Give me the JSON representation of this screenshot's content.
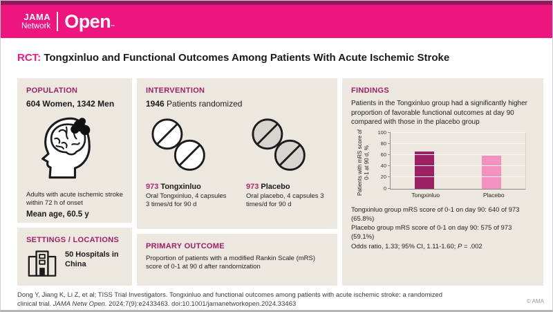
{
  "brand": {
    "jama": "JAMA",
    "network": "Network",
    "open": "Open",
    "tm": "™"
  },
  "title": {
    "tag": "RCT:",
    "text": " Tongxinluo and Functional Outcomes Among Patients With Acute Ischemic Stroke"
  },
  "population": {
    "heading": "POPULATION",
    "stat": "604 Women, 1342 Men",
    "description": "Adults with acute ischemic stroke within 72 h of onset",
    "mean_age": "Mean age, 60.5 y",
    "icon": "head-brain-stroke-icon"
  },
  "settings": {
    "heading": "SETTINGS / LOCATIONS",
    "stat": "50 Hospitals in China",
    "icon": "hospital-icon"
  },
  "intervention": {
    "heading": "INTERVENTION",
    "count": "1946",
    "count_suffix": " Patients randomized",
    "groups": [
      {
        "count": "973",
        "name": " Tongxinluo",
        "detail": "Oral Tongxinluo, 4 capsules 3 times/d for 90 d",
        "icon": "capsules-icon"
      },
      {
        "count": "973",
        "name": " Placebo",
        "detail": "Oral placebo, 4 capsules 3 times/d for 90 d",
        "icon": "capsules-placebo-icon"
      }
    ]
  },
  "primary_outcome": {
    "heading": "PRIMARY OUTCOME",
    "text": "Proportion of patients with a modified Rankin Scale (mRS) score of 0-1 at 90 d after randomization"
  },
  "findings": {
    "heading": "FINDINGS",
    "summary": "Patients in the Tongxinluo group had a significantly higher proportion of favorable functional outcomes at day 90 compared with those in the placebo group",
    "results": [
      "Tongxinluo group mRS score of 0-1 on day 90: 640 of 973 (65.8%)",
      "Placebo group mRS score of 0-1 on day 90: 575 of 973 (59.1%)"
    ],
    "stats_prefix": "Odds ratio, 1.33; 95% CI, 1.11-1.60; ",
    "p_label": "P",
    "p_value": " = .002"
  },
  "chart_data": {
    "type": "bar",
    "categories": [
      "Tongxinluo",
      "Placebo"
    ],
    "values": [
      65.8,
      59.1
    ],
    "title": "",
    "xlabel": "",
    "ylabel": "Patients with mRS score of 0-1 at 90 d, %",
    "ylim": [
      0,
      100
    ],
    "yticks": [
      0,
      20,
      40,
      60,
      80,
      100
    ],
    "bar_colors": [
      "#9B2064",
      "#F392C0"
    ],
    "grid": true,
    "legend_position": "none"
  },
  "footer": {
    "citation_before": "Dong Y, Jiang K, Li Z, et al; TISS Trial Investigators. Tongxinluo and functional outcomes among patients with acute ischemic stroke: a randomized clinical trial. ",
    "citation_journal": "JAMA Netw Open",
    "citation_after": ". 2024;7(9):e2433463. doi:10.1001/jamanetworkopen.2024.33463",
    "copyright": "© AMA"
  },
  "colors": {
    "brand_pink": "#EE167E",
    "brand_dark_magenta": "#8E1A5C",
    "heading_magenta": "#9E2064",
    "accent_number": "#B42573",
    "panel_beige": "#ECE8DF",
    "bar_tongxinluo": "#9B2064",
    "bar_placebo": "#F392C0"
  }
}
